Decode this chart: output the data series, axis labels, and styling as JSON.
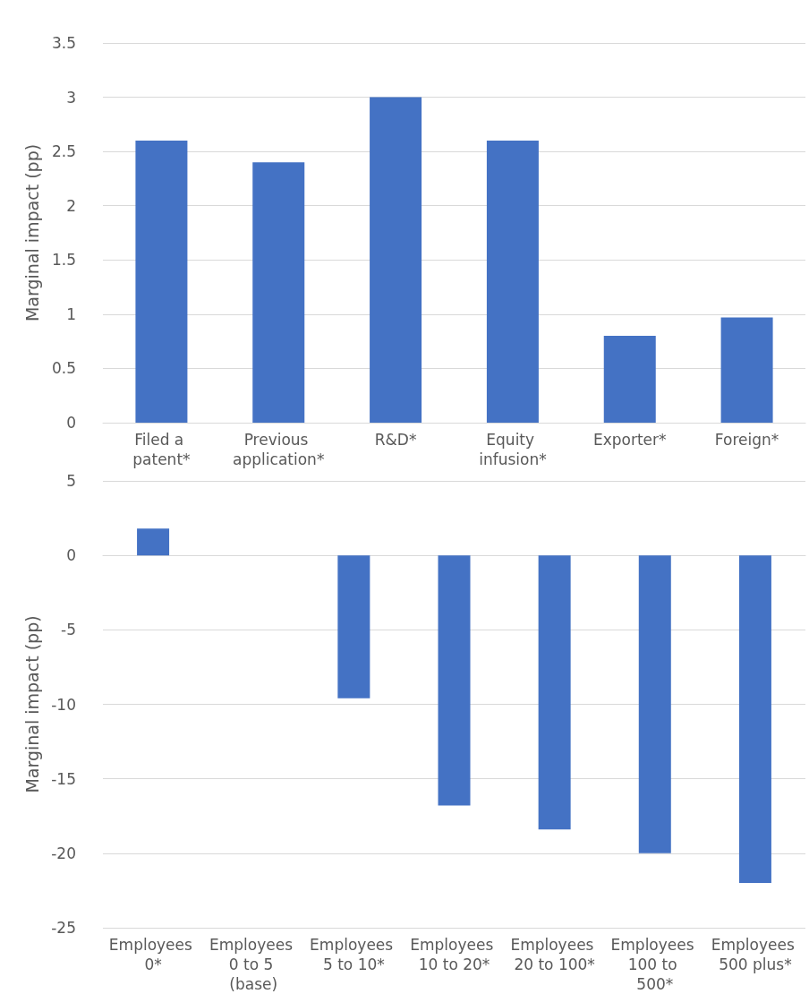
{
  "chart_data": [
    {
      "type": "bar",
      "ylabel": "Marginal impact (pp)",
      "categories": [
        "Filed a patent*",
        "Previous application*",
        "R&D*",
        "Equity infusion*",
        "Exporter*",
        "Foreign*"
      ],
      "values": [
        2.6,
        2.4,
        3.0,
        2.6,
        0.8,
        0.97
      ],
      "color": "#4472c4",
      "ylim": [
        0,
        3.5
      ],
      "yticks": [
        0,
        0.5,
        1,
        1.5,
        2,
        2.5,
        3,
        3.5
      ],
      "grid": "y"
    },
    {
      "type": "bar",
      "ylabel": "Marginal impact (pp)",
      "categories": [
        "Employees 0*",
        "Employees 0 to 5 (base)",
        "Employees 5 to 10*",
        "Employees 10 to 20*",
        "Employees 20 to 100*",
        "Employees 100 to 500*",
        "Employees 500 plus*"
      ],
      "values": [
        1.8,
        0,
        -9.6,
        -16.8,
        -18.4,
        -20,
        -22
      ],
      "color": "#4472c4",
      "ylim": [
        -25,
        5
      ],
      "yticks": [
        -25,
        -20,
        -15,
        -10,
        -5,
        0,
        5
      ],
      "grid": "y"
    }
  ]
}
